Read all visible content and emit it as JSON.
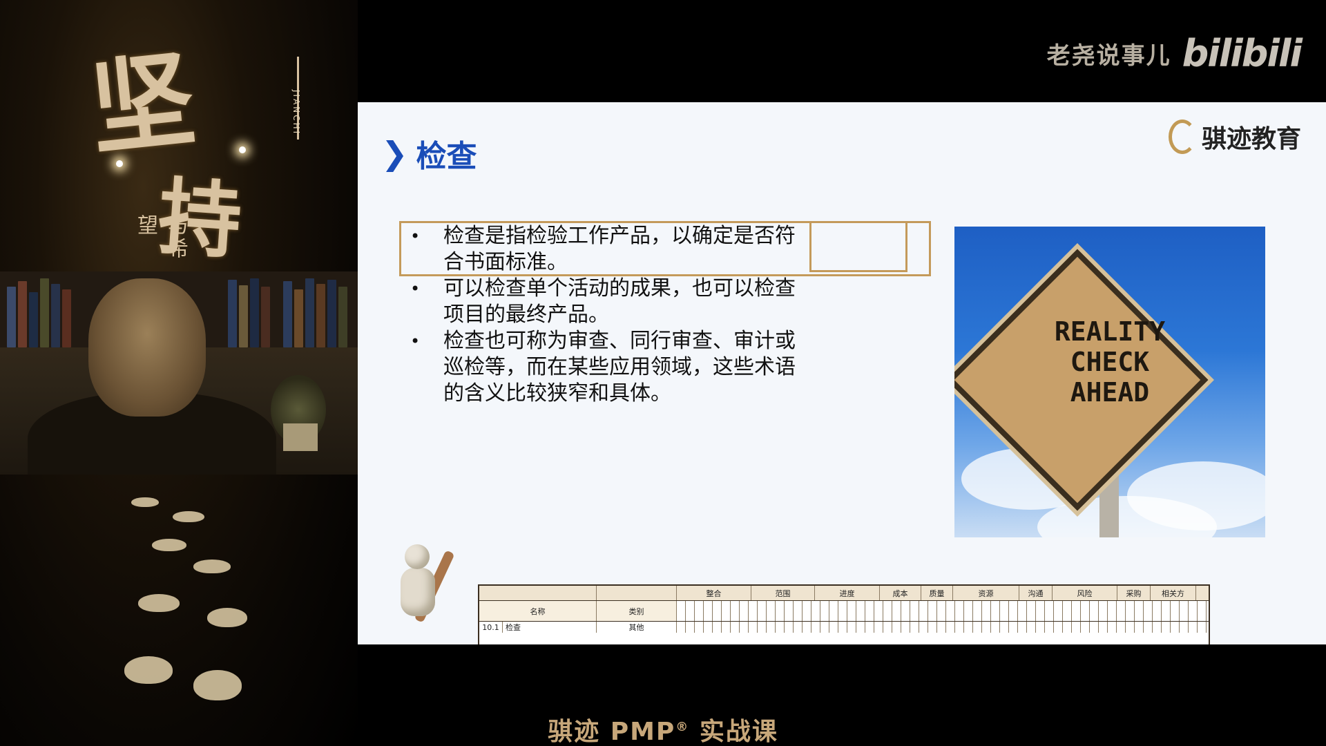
{
  "watermark": {
    "channel": "老尧说事儿",
    "logo": "bilibili"
  },
  "poster": {
    "title_char_1": "坚",
    "title_char_2": "持",
    "subtitle": "与希望",
    "pinyin": "JIANCHI"
  },
  "slide": {
    "title": "检查",
    "brand": "骐迹教育",
    "bullets": [
      "检查是指检验工作产品，以确定是否符合书面标准。",
      "可以检查单个活动的成果，也可以检查项目的最终产品。",
      "检查也可称为审查、同行审查、审计或巡检等，而在某些应用领域，这些术语的含义比较狭窄和具体。"
    ],
    "sign_text": [
      "REALITY",
      "CHECK",
      "AHEAD"
    ],
    "matrix": {
      "header_groups": [
        "整合",
        "范围",
        "进度",
        "成本",
        "质量",
        "资源",
        "沟通",
        "风险",
        "采购",
        "相关方"
      ],
      "column_name": "名称",
      "column_category": "类别",
      "row_id": "10.1",
      "row_name": "检查",
      "row_category": "其他"
    }
  },
  "caption": {
    "prefix": "骐迹 PMP",
    "reg": "®",
    "suffix": " 实战课"
  },
  "colors": {
    "accent": "#1a4db8",
    "highlight_box": "#c49a5a",
    "caption": "#c7a77a"
  }
}
